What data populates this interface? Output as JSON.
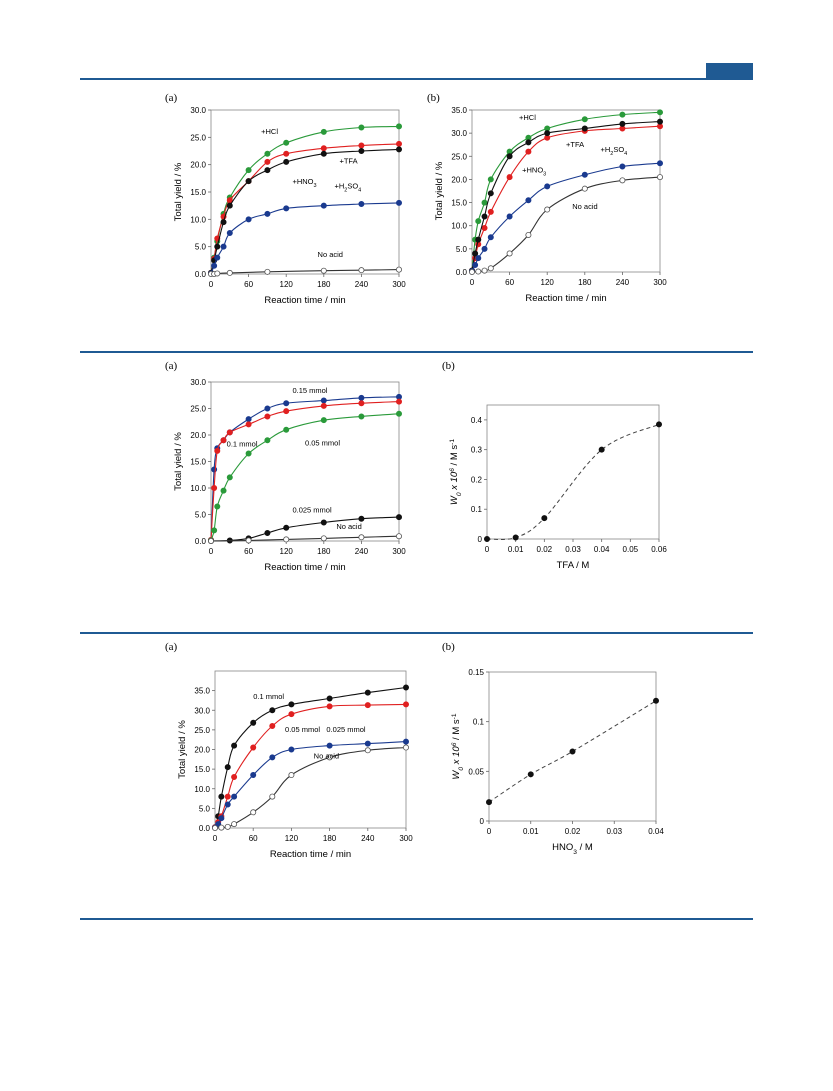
{
  "header": {
    "accent_color": "#1f5a93"
  },
  "chart_data": [
    {
      "panel": "(a)",
      "type": "scatter",
      "xlabel": "Reaction time / min",
      "ylabel": "Total yield / %",
      "xlim": [
        0,
        300
      ],
      "ylim": [
        0,
        30
      ],
      "xticks": [
        0,
        60,
        120,
        180,
        240,
        300
      ],
      "yticks": [
        0,
        5,
        10,
        15,
        20,
        25,
        30
      ],
      "decimals": 1,
      "series": [
        {
          "name": "+HCl",
          "color": "#2a9a3a",
          "hollow": false,
          "x": [
            0,
            5,
            10,
            20,
            30,
            60,
            90,
            120,
            180,
            240,
            300
          ],
          "y": [
            0.2,
            3.0,
            6.0,
            11.0,
            14.0,
            19.0,
            22.0,
            24.0,
            26.0,
            26.8,
            27.0
          ]
        },
        {
          "name": "+TFA",
          "color": "#e02020",
          "hollow": false,
          "x": [
            0,
            5,
            10,
            20,
            30,
            60,
            90,
            120,
            180,
            240,
            300
          ],
          "y": [
            0.2,
            2.8,
            6.5,
            10.5,
            13.5,
            17.0,
            20.5,
            22.0,
            23.0,
            23.5,
            23.8
          ]
        },
        {
          "name": "+HNO3",
          "color": "#111111",
          "hollow": false,
          "x": [
            0,
            5,
            10,
            20,
            30,
            60,
            90,
            120,
            180,
            240,
            300
          ],
          "y": [
            0.2,
            2.5,
            5.0,
            9.5,
            12.5,
            17.0,
            19.0,
            20.5,
            22.0,
            22.5,
            22.8
          ]
        },
        {
          "name": "+H2SO4",
          "color": "#1a3a8f",
          "hollow": false,
          "x": [
            0,
            5,
            10,
            20,
            30,
            60,
            90,
            120,
            180,
            240,
            300
          ],
          "y": [
            0.1,
            1.5,
            3.0,
            5.0,
            7.5,
            10.0,
            11.0,
            12.0,
            12.5,
            12.8,
            13.0
          ]
        },
        {
          "name": "No acid",
          "color": "#333333",
          "hollow": true,
          "x": [
            0,
            5,
            10,
            30,
            90,
            180,
            240,
            300
          ],
          "y": [
            0,
            0,
            0.1,
            0.2,
            0.4,
            0.6,
            0.7,
            0.8
          ]
        }
      ],
      "annotations": [
        {
          "text": "+HCl",
          "x": 80,
          "y": 25.6,
          "sub": ""
        },
        {
          "text": "+TFA",
          "x": 205,
          "y": 20.2,
          "sub": ""
        },
        {
          "text": "+HNO",
          "x": 130,
          "y": 16.5,
          "sub": "3"
        },
        {
          "text": "+H",
          "x": 197,
          "y": 15.6,
          "sub": "2",
          "tail": "SO",
          "sub2": "4"
        },
        {
          "text": "No acid",
          "x": 170,
          "y": 3.1,
          "sub": ""
        }
      ]
    },
    {
      "panel": "(b)",
      "type": "scatter",
      "xlabel": "Reaction time / min",
      "ylabel": "Total yield / %",
      "xlim": [
        0,
        300
      ],
      "ylim": [
        0,
        35
      ],
      "xticks": [
        0,
        60,
        120,
        180,
        240,
        300
      ],
      "yticks": [
        0,
        5,
        10,
        15,
        20,
        25,
        30,
        35
      ],
      "decimals": 1,
      "series": [
        {
          "name": "+HCl",
          "color": "#2a9a3a",
          "hollow": false,
          "x": [
            0,
            5,
            10,
            20,
            30,
            60,
            90,
            120,
            180,
            240,
            300
          ],
          "y": [
            0.3,
            7.0,
            11.0,
            15.0,
            20.0,
            26.0,
            29.0,
            31.0,
            33.0,
            34.0,
            34.5
          ]
        },
        {
          "name": "+TFA",
          "color": "#e02020",
          "hollow": false,
          "x": [
            0,
            5,
            10,
            20,
            30,
            60,
            90,
            120,
            180,
            240,
            300
          ],
          "y": [
            0.3,
            3.0,
            6.0,
            9.5,
            13.0,
            20.5,
            26.0,
            29.0,
            30.5,
            31.0,
            31.5
          ]
        },
        {
          "name": "+HNO3",
          "color": "#111111",
          "hollow": false,
          "x": [
            0,
            5,
            10,
            20,
            30,
            60,
            90,
            120,
            180,
            240,
            300
          ],
          "y": [
            0.3,
            4.0,
            7.0,
            12.0,
            17.0,
            25.0,
            28.0,
            30.0,
            31.0,
            32.0,
            32.5
          ]
        },
        {
          "name": "+H2SO4",
          "color": "#1a3a8f",
          "hollow": false,
          "x": [
            0,
            5,
            10,
            20,
            30,
            60,
            90,
            120,
            180,
            240,
            300
          ],
          "y": [
            0.2,
            1.5,
            3.0,
            5.0,
            7.5,
            12.0,
            15.5,
            18.5,
            21.0,
            22.8,
            23.5
          ]
        },
        {
          "name": "No acid",
          "color": "#333333",
          "hollow": true,
          "x": [
            0,
            10,
            20,
            30,
            60,
            90,
            120,
            180,
            240,
            300
          ],
          "y": [
            0,
            0.1,
            0.3,
            0.8,
            4.0,
            8.0,
            13.5,
            18.0,
            19.8,
            20.5
          ]
        }
      ],
      "annotations": [
        {
          "text": "+HCl",
          "x": 75,
          "y": 32.8,
          "sub": ""
        },
        {
          "text": "+TFA",
          "x": 150,
          "y": 27.0,
          "sub": ""
        },
        {
          "text": "+HNO",
          "x": 80,
          "y": 21.5,
          "sub": "3"
        },
        {
          "text": "+H",
          "x": 205,
          "y": 25.9,
          "sub": "2",
          "tail": "SO",
          "sub2": "4"
        },
        {
          "text": "No acid",
          "x": 160,
          "y": 13.6,
          "sub": ""
        }
      ]
    },
    {
      "panel": "(a)",
      "type": "scatter",
      "xlabel": "Reaction time / min",
      "ylabel": "Total yield / %",
      "xlim": [
        0,
        300
      ],
      "ylim": [
        0,
        30
      ],
      "xticks": [
        0,
        60,
        120,
        180,
        240,
        300
      ],
      "yticks": [
        0,
        5,
        10,
        15,
        20,
        25,
        30
      ],
      "decimals": 1,
      "series": [
        {
          "name": "0.15 mmol",
          "color": "#1a3a8f",
          "hollow": false,
          "x": [
            0,
            5,
            10,
            20,
            30,
            60,
            90,
            120,
            180,
            240,
            300
          ],
          "y": [
            0.2,
            13.5,
            17.5,
            19.0,
            20.5,
            23.0,
            25.0,
            26.0,
            26.5,
            27.0,
            27.2
          ]
        },
        {
          "name": "0.1 mmol",
          "color": "#e02020",
          "hollow": false,
          "x": [
            0,
            5,
            10,
            20,
            30,
            60,
            90,
            120,
            180,
            240,
            300
          ],
          "y": [
            0.2,
            10.0,
            17.0,
            19.0,
            20.5,
            22.0,
            23.5,
            24.5,
            25.5,
            26.0,
            26.3
          ]
        },
        {
          "name": "0.05 mmol",
          "color": "#2a9a3a",
          "hollow": false,
          "x": [
            0,
            5,
            10,
            20,
            30,
            60,
            90,
            120,
            180,
            240,
            300
          ],
          "y": [
            0.1,
            2.0,
            6.5,
            9.5,
            12.0,
            16.5,
            19.0,
            21.0,
            22.8,
            23.5,
            24.0
          ]
        },
        {
          "name": "0.025 mmol",
          "color": "#111111",
          "hollow": false,
          "x": [
            0,
            30,
            60,
            90,
            120,
            180,
            240,
            300
          ],
          "y": [
            0,
            0.1,
            0.5,
            1.5,
            2.5,
            3.5,
            4.2,
            4.5
          ]
        },
        {
          "name": "No acid",
          "color": "#333333",
          "hollow": true,
          "x": [
            0,
            60,
            120,
            180,
            240,
            300
          ],
          "y": [
            0,
            0.1,
            0.3,
            0.5,
            0.7,
            0.9
          ]
        }
      ],
      "annotations": [
        {
          "text": "0.15 mmol",
          "x": 130,
          "y": 27.9,
          "sub": ""
        },
        {
          "text": "0.1 mmol",
          "x": 25,
          "y": 17.8,
          "sub": ""
        },
        {
          "text": "0.05 mmol",
          "x": 150,
          "y": 18.0,
          "sub": ""
        },
        {
          "text": "0.025 mmol",
          "x": 130,
          "y": 5.4,
          "sub": ""
        },
        {
          "text": "No acid",
          "x": 200,
          "y": 2.3,
          "sub": ""
        }
      ]
    },
    {
      "panel": "(b)",
      "type": "scatter",
      "xlabel": "TFA / M",
      "ylabel": "W0 x 10^6 / M s^-1",
      "xlim": [
        0,
        0.06
      ],
      "ylim": [
        0,
        0.45
      ],
      "xticks": [
        0,
        0.01,
        0.02,
        0.03,
        0.04,
        0.05,
        0.06
      ],
      "yticks": [
        0,
        0.1,
        0.2,
        0.3,
        0.4
      ],
      "decimals": -1,
      "dashed_fit": true,
      "series": [
        {
          "name": "",
          "color": "#111111",
          "hollow": false,
          "x": [
            0,
            0.01,
            0.02,
            0.04,
            0.06
          ],
          "y": [
            0,
            0.005,
            0.07,
            0.3,
            0.385
          ]
        }
      ],
      "annotations": []
    },
    {
      "panel": "(a)",
      "type": "scatter",
      "xlabel": "Reaction time / min",
      "ylabel": "Total yield / %",
      "xlim": [
        0,
        300
      ],
      "ylim": [
        0,
        40
      ],
      "xticks": [
        0,
        60,
        120,
        180,
        240,
        300
      ],
      "yticks": [
        0,
        5,
        10,
        15,
        20,
        25,
        30,
        35
      ],
      "decimals": 1,
      "series": [
        {
          "name": "0.1 mmol",
          "color": "#111111",
          "hollow": false,
          "x": [
            0,
            5,
            10,
            20,
            30,
            60,
            90,
            120,
            180,
            240,
            300
          ],
          "y": [
            0.2,
            3.0,
            8.0,
            15.5,
            21.0,
            26.8,
            30.0,
            31.5,
            33.0,
            34.5,
            35.8
          ]
        },
        {
          "name": "0.05 mmol",
          "color": "#e02020",
          "hollow": false,
          "x": [
            0,
            5,
            10,
            20,
            30,
            60,
            90,
            120,
            180,
            240,
            300
          ],
          "y": [
            0.2,
            1.5,
            3.0,
            8.0,
            13.0,
            20.5,
            26.0,
            29.0,
            31.0,
            31.3,
            31.5
          ]
        },
        {
          "name": "0.025 mmol",
          "color": "#1a3a8f",
          "hollow": false,
          "x": [
            0,
            5,
            10,
            20,
            30,
            60,
            90,
            120,
            180,
            240,
            300
          ],
          "y": [
            0.1,
            1.0,
            2.5,
            6.0,
            8.0,
            13.5,
            18.0,
            20.0,
            21.0,
            21.5,
            22.0
          ]
        },
        {
          "name": "No acid",
          "color": "#333333",
          "hollow": true,
          "x": [
            0,
            10,
            20,
            30,
            60,
            90,
            120,
            180,
            240,
            300
          ],
          "y": [
            0,
            0.1,
            0.3,
            1.0,
            4.0,
            8.0,
            13.5,
            18.0,
            19.8,
            20.5
          ]
        }
      ],
      "annotations": [
        {
          "text": "0.1 mmol",
          "x": 60,
          "y": 32.9,
          "sub": ""
        },
        {
          "text": "0.05 mmol",
          "x": 110,
          "y": 24.5,
          "sub": ""
        },
        {
          "text": "0.025 mmol",
          "x": 175,
          "y": 24.5,
          "sub": ""
        },
        {
          "text": "No acid",
          "x": 155,
          "y": 17.7,
          "sub": ""
        }
      ]
    },
    {
      "panel": "(b)",
      "type": "scatter",
      "xlabel": "HNO3 / M",
      "ylabel": "W0 x 10^6 / M s^-1",
      "xlim": [
        0,
        0.04
      ],
      "ylim": [
        0,
        0.15
      ],
      "xticks": [
        0,
        0.01,
        0.02,
        0.03,
        0.04
      ],
      "yticks": [
        0,
        0.05,
        0.1,
        0.15
      ],
      "decimals": -1,
      "dashed_fit": true,
      "series": [
        {
          "name": "",
          "color": "#111111",
          "hollow": false,
          "x": [
            0,
            0.01,
            0.02,
            0.04
          ],
          "y": [
            0.019,
            0.047,
            0.07,
            0.121
          ]
        }
      ],
      "annotations": []
    }
  ]
}
